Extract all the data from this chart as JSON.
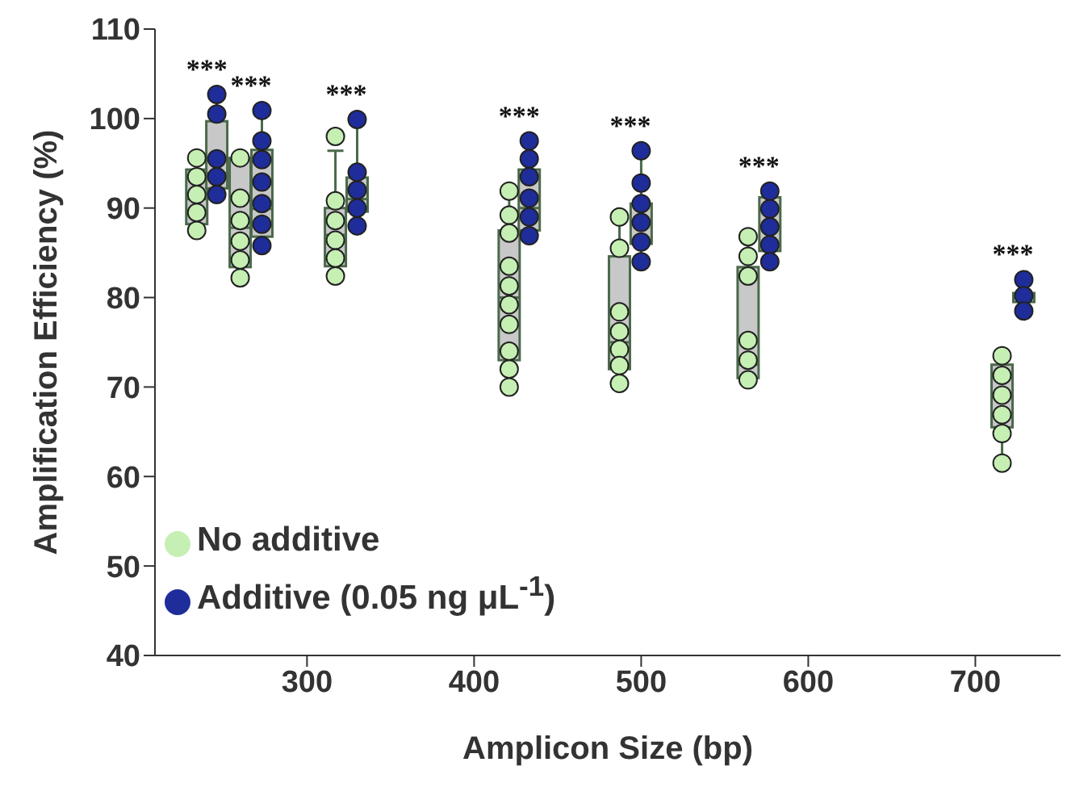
{
  "chart_data": {
    "type": "box",
    "xlabel": "Amplicon Size (bp)",
    "ylabel": "Amplification Efficiency (%)",
    "xlim": [
      209,
      751
    ],
    "xticks": [
      300,
      400,
      500,
      600,
      700
    ],
    "ylim": [
      40,
      110
    ],
    "yticks": [
      40,
      50,
      60,
      70,
      80,
      90,
      100,
      110
    ],
    "legend": "bottom left",
    "marker": "circle",
    "series": [
      {
        "color": "#c8c8c8",
        "x": [
          234,
          260,
          317,
          421,
          487,
          564,
          716
        ],
        "boxes": [
          {
            "low": 87.5,
            "q1": 88.2,
            "median": 91,
            "q3": 94.3,
            "high": 95.6
          },
          {
            "low": 82.2,
            "q1": 83.4,
            "median": 87.8,
            "q3": 95.6,
            "high": 95.6
          },
          {
            "low": 82.4,
            "q1": 83.5,
            "median": 87,
            "q3": 90,
            "high": 96.4
          },
          {
            "low": 70,
            "q1": 73,
            "median": 80,
            "q3": 87.5,
            "high": 91.9
          },
          {
            "low": 70.4,
            "q1": 72,
            "median": 75,
            "q3": 84.6,
            "high": 89
          },
          {
            "low": 70.8,
            "q1": 71,
            "median": 72.5,
            "q3": 83.4,
            "high": 86.8
          },
          {
            "low": 61.5,
            "q1": 65.5,
            "median": 69,
            "q3": 72.5,
            "high": 73.5
          }
        ]
      },
      {
        "color": "#c8c8c8",
        "x": [
          246,
          273,
          330,
          433,
          500,
          577,
          729
        ],
        "boxes": [
          {
            "low": 91.5,
            "q1": 92.2,
            "median": 93.9,
            "q3": 99.7,
            "high": 102.7
          },
          {
            "low": 85.8,
            "q1": 86.8,
            "median": 89.9,
            "q3": 96.5,
            "high": 100.9
          },
          {
            "low": 88,
            "q1": 89.6,
            "median": 91,
            "q3": 93.4,
            "high": 99.9
          },
          {
            "low": 86.9,
            "q1": 87.5,
            "median": 90,
            "q3": 94.3,
            "high": 97.5
          },
          {
            "low": 84,
            "q1": 86,
            "median": 88.5,
            "q3": 90.5,
            "high": 96.4
          },
          {
            "low": 84,
            "q1": 85.2,
            "median": 88,
            "q3": 91.2,
            "high": 91.9
          },
          {
            "low": 78.5,
            "q1": 79.5,
            "median": 80,
            "q3": 80.5,
            "high": 82
          }
        ]
      },
      {
        "type": "scatter",
        "name": "No additive",
        "color": "#c6efb3",
        "x": [
          234,
          234,
          234,
          234,
          234,
          260,
          260,
          260,
          260,
          260,
          260,
          317,
          317,
          317,
          317,
          317,
          317,
          421,
          421,
          421,
          421,
          421,
          421,
          421,
          421,
          421,
          421,
          487,
          487,
          487,
          487,
          487,
          487,
          487,
          564,
          564,
          564,
          564,
          564,
          564,
          716,
          716,
          716,
          716,
          716,
          716
        ],
        "values": [
          95.6,
          93.5,
          91.5,
          89.5,
          87.5,
          95.6,
          91.1,
          88.6,
          86.3,
          84.2,
          82.2,
          98.0,
          90.8,
          88.6,
          86.4,
          84.4,
          82.4,
          91.9,
          89.2,
          87.2,
          83.5,
          81.3,
          79.2,
          77.0,
          74.0,
          72.0,
          70.0,
          89.0,
          85.5,
          78.4,
          76.2,
          74.2,
          72.4,
          70.4,
          86.8,
          84.6,
          82.4,
          75.2,
          73.0,
          70.8,
          73.5,
          71.3,
          69.1,
          66.9,
          64.8,
          61.5
        ]
      },
      {
        "type": "scatter",
        "name": "Additive (0.05 ng μL$^{-1}$)",
        "color": "#1f2d9a",
        "x": [
          246,
          246,
          246,
          246,
          246,
          273,
          273,
          273,
          273,
          273,
          273,
          273,
          330,
          330,
          330,
          330,
          330,
          433,
          433,
          433,
          433,
          433,
          433,
          500,
          500,
          500,
          500,
          500,
          500,
          577,
          577,
          577,
          577,
          577,
          729,
          729,
          729
        ],
        "values": [
          102.7,
          100.5,
          95.5,
          93.5,
          91.5,
          100.9,
          97.5,
          95.4,
          92.9,
          90.5,
          88.2,
          85.8,
          99.9,
          94.0,
          92.0,
          90.0,
          88.0,
          97.5,
          95.5,
          93.5,
          91.1,
          89.0,
          86.9,
          96.4,
          92.8,
          90.5,
          88.4,
          86.2,
          84.0,
          91.9,
          89.9,
          87.9,
          85.9,
          84.0,
          82.0,
          80.2,
          78.5
        ]
      }
    ],
    "annotations": [
      "***",
      "***",
      "***",
      "***",
      "***",
      "***",
      "***"
    ]
  }
}
